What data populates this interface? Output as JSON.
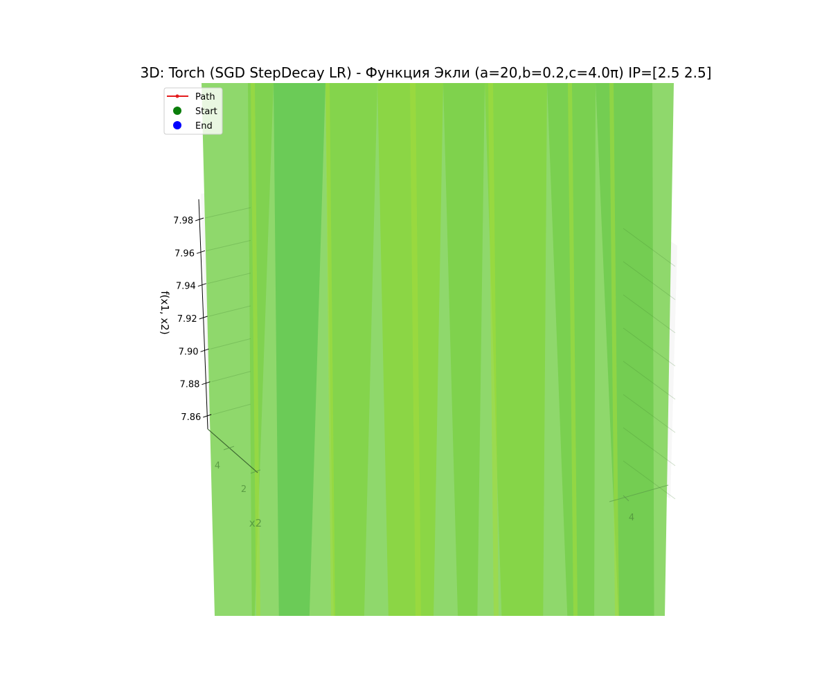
{
  "chart_data": {
    "type": "surface3d",
    "title": "3D: Torch (SGD StepDecay LR) - Функция Экли (a=20,b=0.2,c=4.0π) IP=[2.5 2.5]",
    "zlabel": "f(x1, x2)",
    "xlabel": "",
    "ylabel": "x2",
    "z_ticks": [
      "7.86",
      "7.88",
      "7.90",
      "7.92",
      "7.94",
      "7.96",
      "7.98"
    ],
    "x2_ticks": [
      "4",
      "2"
    ],
    "x1_ticks": [
      "4"
    ],
    "legend": {
      "placement": "top-left",
      "entries": [
        {
          "label": "Path",
          "marker": "line-dot",
          "color": "#e41a1c"
        },
        {
          "label": "Start",
          "marker": "dot",
          "color": "#0a7d0a"
        },
        {
          "label": "End",
          "marker": "dot",
          "color": "#0000ff"
        }
      ]
    },
    "surface_colormap": [
      "#8fd86c",
      "#6bcb57",
      "#84d44c",
      "#8dd645",
      "#74cd52"
    ]
  }
}
